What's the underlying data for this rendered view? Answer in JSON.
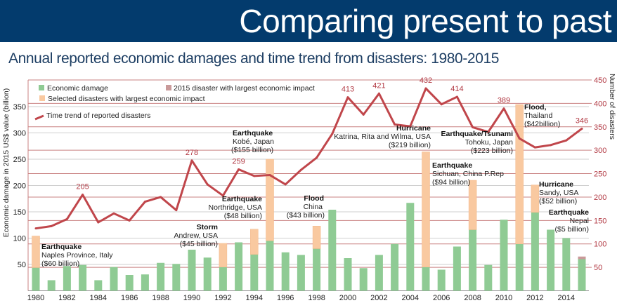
{
  "header": {
    "title": "Comparing present to past"
  },
  "chart_data": {
    "type": "bar+line",
    "title": "Annual reported economic damages and time trend from disasters: 1980-2015",
    "ylabel": "Economic damage in 2015 US$ value (billion)",
    "y2label": "Number of disasters",
    "ylim": [
      0,
      350
    ],
    "y2lim": [
      0,
      450
    ],
    "yticks": [
      50,
      100,
      150,
      200,
      250,
      300,
      350
    ],
    "y2ticks": [
      50,
      100,
      150,
      200,
      250,
      300,
      350,
      400,
      450
    ],
    "xticks": [
      "1980",
      "1982",
      "1984",
      "1986",
      "1988",
      "1990",
      "1992",
      "1994",
      "1996",
      "1998",
      "2000",
      "2002",
      "2004",
      "2006",
      "2008",
      "2010",
      "2012",
      "2014"
    ],
    "years": [
      1980,
      1981,
      1982,
      1983,
      1984,
      1985,
      1986,
      1987,
      1988,
      1989,
      1990,
      1991,
      1992,
      1993,
      1994,
      1995,
      1996,
      1997,
      1998,
      1999,
      2000,
      2001,
      2002,
      2003,
      2004,
      2005,
      2006,
      2007,
      2008,
      2009,
      2010,
      2011,
      2012,
      2013,
      2014,
      2015
    ],
    "grid": true,
    "legend_position": "top-left",
    "legend": {
      "economic_damage": "Economic damage",
      "selected": "Selected disasters with largest economic impact",
      "highlight_2015": "2015 disaster with largest economic impact",
      "trend": "Time trend of reported disasters"
    },
    "colors": {
      "economic_damage": "#8fcb94",
      "selected": "#f9c9a0",
      "highlight_2015": "#c99a9a",
      "trend": "#c0464b"
    },
    "series": [
      {
        "name": "Economic damage",
        "axis": "left",
        "type": "bar",
        "values": [
          44,
          20,
          47,
          49,
          20,
          45,
          30,
          31,
          53,
          51,
          78,
          63,
          45,
          92,
          69,
          95,
          73,
          68,
          80,
          154,
          62,
          43,
          68,
          89,
          167,
          45,
          40,
          84,
          116,
          49,
          135,
          89,
          149,
          116,
          100,
          60
        ]
      },
      {
        "name": "Selected disasters with largest economic impact",
        "axis": "left",
        "type": "stacked-bar",
        "segments": [
          {
            "year": 1980,
            "value": 60
          },
          {
            "year": 1992,
            "value": 45
          },
          {
            "year": 1994,
            "value": 48
          },
          {
            "year": 1995,
            "value": 155
          },
          {
            "year": 1998,
            "value": 43
          },
          {
            "year": 2005,
            "value": 219
          },
          {
            "year": 2008,
            "value": 94
          },
          {
            "year": 2011,
            "value": 223
          },
          {
            "year": 2011,
            "value": 42
          },
          {
            "year": 2012,
            "value": 52
          }
        ]
      },
      {
        "name": "2015 disaster with largest economic impact",
        "axis": "left",
        "type": "stacked-bar",
        "segments": [
          {
            "year": 2015,
            "value": 5
          }
        ]
      },
      {
        "name": "Time trend of reported disasters",
        "axis": "right",
        "type": "line",
        "values": [
          133,
          138,
          153,
          205,
          146,
          165,
          150,
          190,
          200,
          172,
          278,
          227,
          203,
          259,
          245,
          247,
          227,
          258,
          284,
          335,
          413,
          376,
          421,
          355,
          351,
          432,
          398,
          414,
          349,
          339,
          389,
          325,
          306,
          311,
          321,
          346
        ]
      }
    ],
    "data_labels": [
      {
        "year": 1983,
        "text": "205"
      },
      {
        "year": 1990,
        "text": "278"
      },
      {
        "year": 1993,
        "text": "259"
      },
      {
        "year": 2000,
        "text": "413"
      },
      {
        "year": 2002,
        "text": "421"
      },
      {
        "year": 2005,
        "text": "432"
      },
      {
        "year": 2007,
        "text": "414"
      },
      {
        "year": 2010,
        "text": "389"
      },
      {
        "year": 2015,
        "text": "346"
      }
    ],
    "annotations": [
      {
        "type": "Earthquake",
        "place": "Naples Province, Italy",
        "amount": "($60 billion)"
      },
      {
        "type": "Storm",
        "place": "Andrew, USA",
        "amount": "($45 billion)"
      },
      {
        "type": "Earthquake",
        "place": "Northridge, USA",
        "amount": "($48 billion)"
      },
      {
        "type": "Earthquake",
        "place": "Kobé, Japan",
        "amount": "($155 billion)"
      },
      {
        "type": "Flood",
        "place": "China",
        "amount": "($43 billion)"
      },
      {
        "type": "Hurricane",
        "place": "Katrina, Rita and Wilma, USA",
        "amount": "($219 billion)"
      },
      {
        "type": "Earthquake",
        "place": "Sichuan, China P.Rep",
        "amount": "($94 billion)"
      },
      {
        "type": "Earthquake/Tsunami",
        "place": "Tohoku, Japan",
        "amount": "($223 billion)"
      },
      {
        "type": "Flood,",
        "place": "Thailand",
        "amount": "($42billion)"
      },
      {
        "type": "Hurricane",
        "place": "Sandy, USA",
        "amount": "($52 billion)"
      },
      {
        "type": "Earthquake",
        "place": "Nepal",
        "amount": "($5 billion)"
      }
    ]
  }
}
